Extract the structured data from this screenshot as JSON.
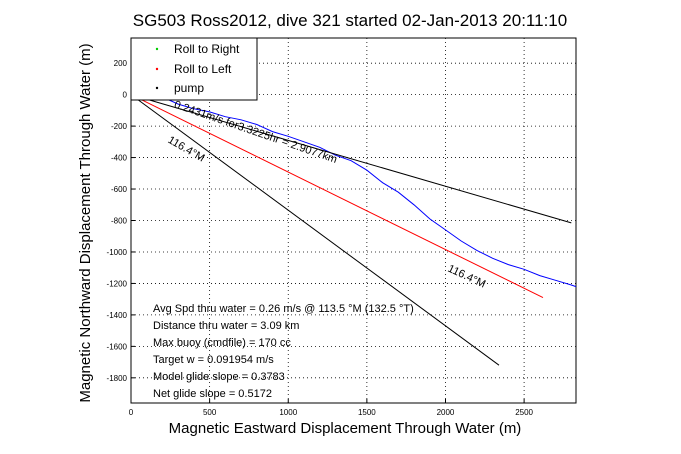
{
  "chart_data": {
    "type": "line",
    "title": "SG503 Ross2012, dive 321 started 02-Jan-2013 20:11:10",
    "xlabel": "Magnetic Eastward Displacement Through Water (m)",
    "ylabel": "Magnetic Northward Displacement Through Water (m)",
    "xlim": [
      0,
      2830
    ],
    "ylim": [
      -1960,
      360
    ],
    "xticks": [
      0,
      500,
      1000,
      1500,
      2000,
      2500
    ],
    "yticks": [
      200,
      0,
      -200,
      -400,
      -600,
      -800,
      -1000,
      -1200,
      -1400,
      -1600,
      -1800
    ],
    "grid": true,
    "legend_position": "top-left",
    "legend": [
      {
        "label": "Roll to Right",
        "color": "#00cc00"
      },
      {
        "label": "Roll to Left",
        "color": "#ff0000"
      },
      {
        "label": "pump",
        "color": "#000000"
      }
    ],
    "series": [
      {
        "color": "#0000ff",
        "x": [
          0,
          20,
          50,
          100,
          200,
          300,
          400,
          500,
          600,
          700,
          800,
          900,
          1000,
          1100,
          1200,
          1300,
          1400,
          1500,
          1600,
          1700,
          1800,
          1900,
          2000,
          2100,
          2200,
          2300,
          2400,
          2500,
          2600,
          2700,
          2800,
          2830
        ],
        "y": [
          0,
          5,
          12,
          0,
          -15,
          -60,
          -90,
          -110,
          -140,
          -160,
          -190,
          -235,
          -265,
          -300,
          -335,
          -385,
          -420,
          -480,
          -560,
          -620,
          -700,
          -790,
          -860,
          -930,
          -990,
          -1040,
          -1080,
          -1110,
          -1150,
          -1180,
          -1210,
          -1220
        ]
      },
      {
        "color": "#ff0000",
        "x": [
          0,
          2620
        ],
        "y": [
          0,
          -1290
        ]
      },
      {
        "color": "#000000",
        "x": [
          0,
          2800
        ],
        "y": [
          0,
          -815
        ]
      },
      {
        "color": "#000000",
        "x": [
          0,
          2340
        ],
        "y": [
          0,
          -1720
        ]
      }
    ],
    "annotations": [
      {
        "text": "0.2431m/s for3.3225hr = 2.9077km",
        "x": 270,
        "y": -80,
        "rotation": 19
      },
      {
        "text": "116.4°M",
        "x": 230,
        "y": -300,
        "rotation": 30
      },
      {
        "text": "116.4°M",
        "x": 2010,
        "y": -1120,
        "rotation": 25
      }
    ],
    "summary": [
      "Avg Spd thru water =  0.26 m/s @ 113.5   °M (132.5 °T)",
      "Distance thru water =  3.09 km",
      "Max buoy (cmdfile) = 170 cc",
      "Target w = 0.091954 m/s",
      "Model glide slope = 0.3783",
      "Net glide slope = 0.5172"
    ]
  }
}
